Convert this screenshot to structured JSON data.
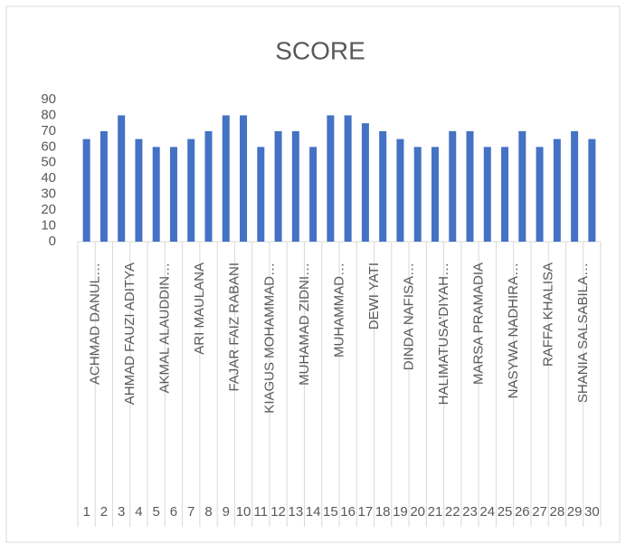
{
  "chart_data": {
    "type": "bar",
    "title": "SCORE",
    "categories": [
      "1",
      "2",
      "3",
      "4",
      "5",
      "6",
      "7",
      "8",
      "9",
      "10",
      "11",
      "12",
      "13",
      "14",
      "15",
      "16",
      "17",
      "18",
      "19",
      "20",
      "21",
      "22",
      "23",
      "24",
      "25",
      "26",
      "27",
      "28",
      "29",
      "30"
    ],
    "names": [
      "ACHMAD DANUL…",
      null,
      "AHMAD FAUZI ADITYA",
      null,
      "AKMAL ALAUDDIN…",
      null,
      "ARI MAULANA",
      null,
      "FAJAR FAIZ RABANI",
      null,
      "KIAGUS MOHAMMAD…",
      null,
      "MUHAMAD ZIDNI…",
      null,
      "MUHAMMAD…",
      null,
      "DEWI YATI",
      null,
      "DINDA NAFISA…",
      null,
      "HALIMATUSA'DIYAH…",
      null,
      "MARSA PRAMADIA",
      null,
      "NASYWA NADHIRA…",
      null,
      "RAFFA KHALISA",
      null,
      "SHANIA SALSABILA…",
      null
    ],
    "values": [
      65,
      70,
      80,
      65,
      60,
      60,
      65,
      70,
      80,
      80,
      60,
      70,
      70,
      60,
      80,
      80,
      75,
      70,
      65,
      60,
      60,
      70,
      70,
      60,
      60,
      70,
      60,
      65,
      70,
      65
    ],
    "color": "#4472c4",
    "ylim": [
      0,
      90
    ],
    "yticks": [
      0,
      10,
      20,
      30,
      40,
      50,
      60,
      70,
      80,
      90
    ],
    "grid": false
  }
}
